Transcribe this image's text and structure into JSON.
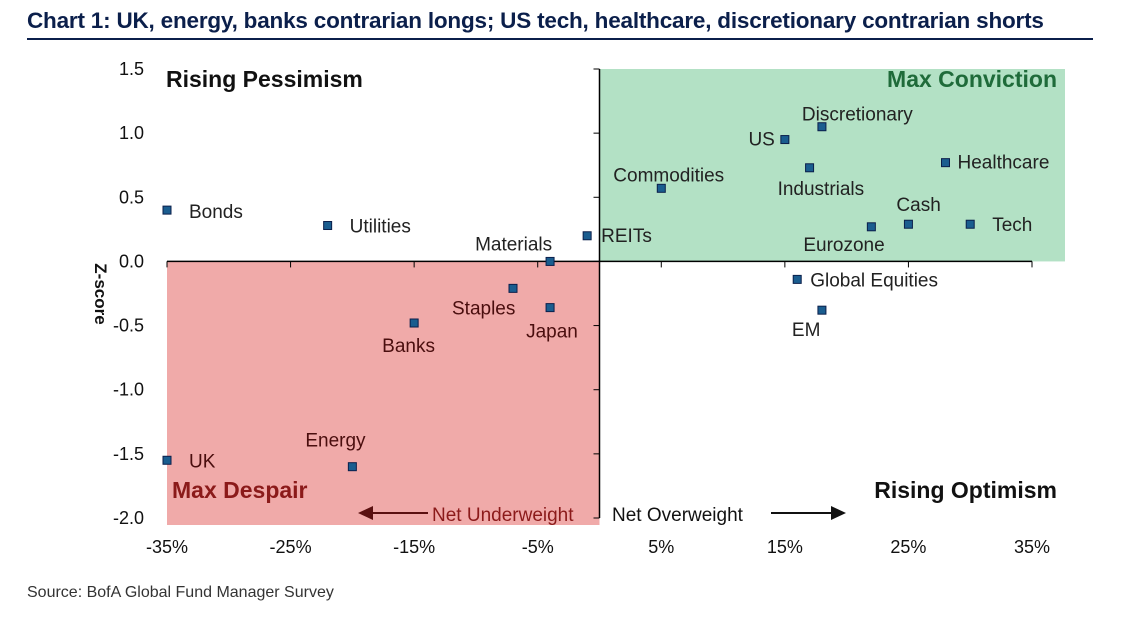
{
  "title": "Chart 1: UK, energy, banks contrarian longs; US tech, healthcare, discretionary contrarian shorts",
  "source": "Source:  BofA Global Fund Manager Survey",
  "chart_data": {
    "type": "scatter",
    "ylabel": "Z-score",
    "xlim": [
      -0.35,
      0.35
    ],
    "ylim": [
      -2.0,
      1.5
    ],
    "xticks": [
      {
        "value": -0.35,
        "label": "-35%"
      },
      {
        "value": -0.25,
        "label": "-25%"
      },
      {
        "value": -0.15,
        "label": "-15%"
      },
      {
        "value": -0.05,
        "label": "-5%"
      },
      {
        "value": 0.05,
        "label": "5%"
      },
      {
        "value": 0.15,
        "label": "15%"
      },
      {
        "value": 0.25,
        "label": "25%"
      },
      {
        "value": 0.35,
        "label": "35%"
      }
    ],
    "yticks": [
      {
        "value": 1.5,
        "label": "1.5"
      },
      {
        "value": 1.0,
        "label": "1.0"
      },
      {
        "value": 0.5,
        "label": "0.5"
      },
      {
        "value": 0.0,
        "label": "0.0"
      },
      {
        "value": -0.5,
        "label": "-0.5"
      },
      {
        "value": -1.0,
        "label": "-1.0"
      },
      {
        "value": -1.5,
        "label": "-1.5"
      },
      {
        "value": -2.0,
        "label": "-2.0"
      }
    ],
    "quadrants": {
      "top_left": "Rising Pessimism",
      "top_right": "Max Conviction",
      "bottom_left": "Max Despair",
      "bottom_right": "Rising Optimism"
    },
    "colors": {
      "max_conviction": "#b3e1c5",
      "max_despair": "#f0aaa9",
      "marker_fill": "#1a5d8f",
      "marker_edge": "#0b1f4b",
      "axis": "#000000",
      "despair_text": "#8b1a1a",
      "conviction_text": "#1f6b3a"
    },
    "net_labels": {
      "underweight": "Net Underweight",
      "overweight": "Net Overweight"
    },
    "points": [
      {
        "label": "Discretionary",
        "x": 0.18,
        "y": 1.05
      },
      {
        "label": "US",
        "x": 0.15,
        "y": 0.95
      },
      {
        "label": "Industrials",
        "x": 0.17,
        "y": 0.73
      },
      {
        "label": "Healthcare",
        "x": 0.28,
        "y": 0.77
      },
      {
        "label": "Commodities",
        "x": 0.05,
        "y": 0.57
      },
      {
        "label": "Cash",
        "x": 0.25,
        "y": 0.29
      },
      {
        "label": "Tech",
        "x": 0.3,
        "y": 0.29
      },
      {
        "label": "Eurozone",
        "x": 0.22,
        "y": 0.27
      },
      {
        "label": "REITs",
        "x": -0.01,
        "y": 0.2
      },
      {
        "label": "Materials",
        "x": -0.04,
        "y": 0.0
      },
      {
        "label": "Global Equities",
        "x": 0.16,
        "y": -0.14
      },
      {
        "label": "EM",
        "x": 0.18,
        "y": -0.38
      },
      {
        "label": "Bonds",
        "x": -0.35,
        "y": 0.4
      },
      {
        "label": "Utilities",
        "x": -0.22,
        "y": 0.28
      },
      {
        "label": "Staples",
        "x": -0.07,
        "y": -0.21
      },
      {
        "label": "Japan",
        "x": -0.04,
        "y": -0.36
      },
      {
        "label": "Banks",
        "x": -0.15,
        "y": -0.48
      },
      {
        "label": "Energy",
        "x": -0.2,
        "y": -1.6
      },
      {
        "label": "UK",
        "x": -0.35,
        "y": -1.55
      }
    ]
  }
}
